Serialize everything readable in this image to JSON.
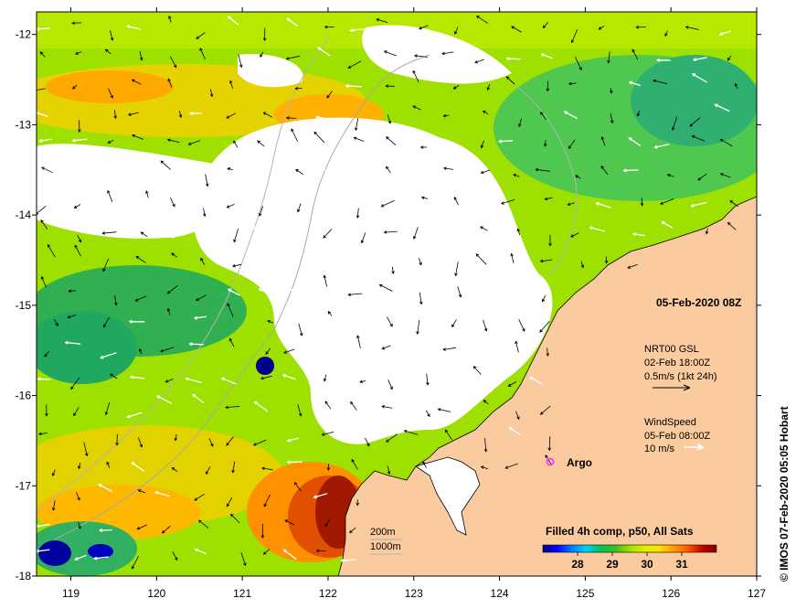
{
  "map": {
    "lon_range": [
      118.6,
      127.0
    ],
    "lat_range": [
      -18.0,
      -11.75
    ],
    "x_ticks": [
      "119",
      "120",
      "121",
      "122",
      "123",
      "124",
      "125",
      "126",
      "127"
    ],
    "y_ticks": [
      "-12",
      "-13",
      "-14",
      "-15",
      "-16",
      "-17",
      "-18"
    ]
  },
  "annotations": {
    "date": "05-Feb-2020 08Z",
    "current_legend": {
      "line1": "NRT00 GSL",
      "line2": "02-Feb 18:00Z",
      "line3": "0.5m/s (1kt 24h)"
    },
    "wind_legend": {
      "line1": "WindSpeed",
      "line2": "05-Feb 08:00Z",
      "line3": "10 m/s"
    },
    "argo_label": "Argo",
    "contour_200": "200m",
    "contour_1000": "1000m",
    "side_credit": "© IMOS 07-Feb-2020 05:05 Hobart"
  },
  "colorbar": {
    "title": "Filled 4h comp, p50, All Sats",
    "tick_labels": [
      "28",
      "29",
      "30",
      "31"
    ],
    "range": [
      27.0,
      32.0
    ],
    "ticks": [
      28,
      29,
      30,
      31
    ]
  },
  "colors": {
    "land": "#fbcba0",
    "cloud": "#ffffff",
    "argo": "#ff33ff"
  },
  "palette": [
    "#000080",
    "#0000ff",
    "#0080ff",
    "#00d0ff",
    "#00c060",
    "#40c020",
    "#a0e000",
    "#e0f000",
    "#ffe000",
    "#ffa000",
    "#ff6000",
    "#c00000",
    "#800000"
  ]
}
